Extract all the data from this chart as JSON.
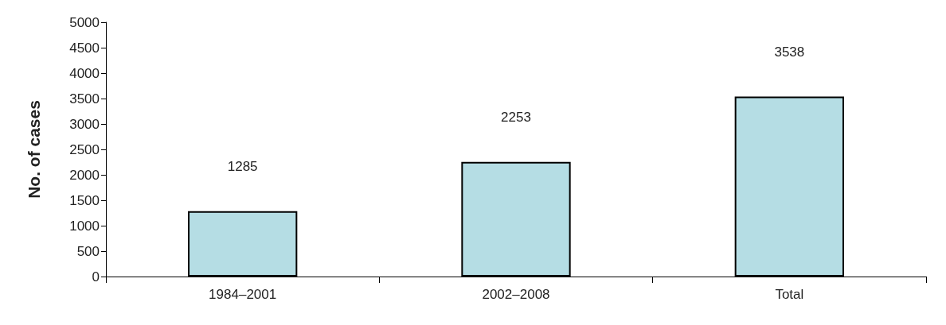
{
  "chart_data": {
    "type": "bar",
    "ylabel": "No. of cases",
    "categories": [
      "1984–2001",
      "2002–2008",
      "Total"
    ],
    "values": [
      1285,
      2253,
      3538
    ],
    "colors": [
      "#b5dde4",
      "#b5dde4",
      "#b5dde4"
    ],
    "ylim": [
      0,
      5000
    ],
    "yticks": [
      0,
      500,
      1000,
      1500,
      2000,
      2500,
      3000,
      3500,
      4000,
      4500,
      5000
    ],
    "grid": false,
    "data_labels": true
  }
}
